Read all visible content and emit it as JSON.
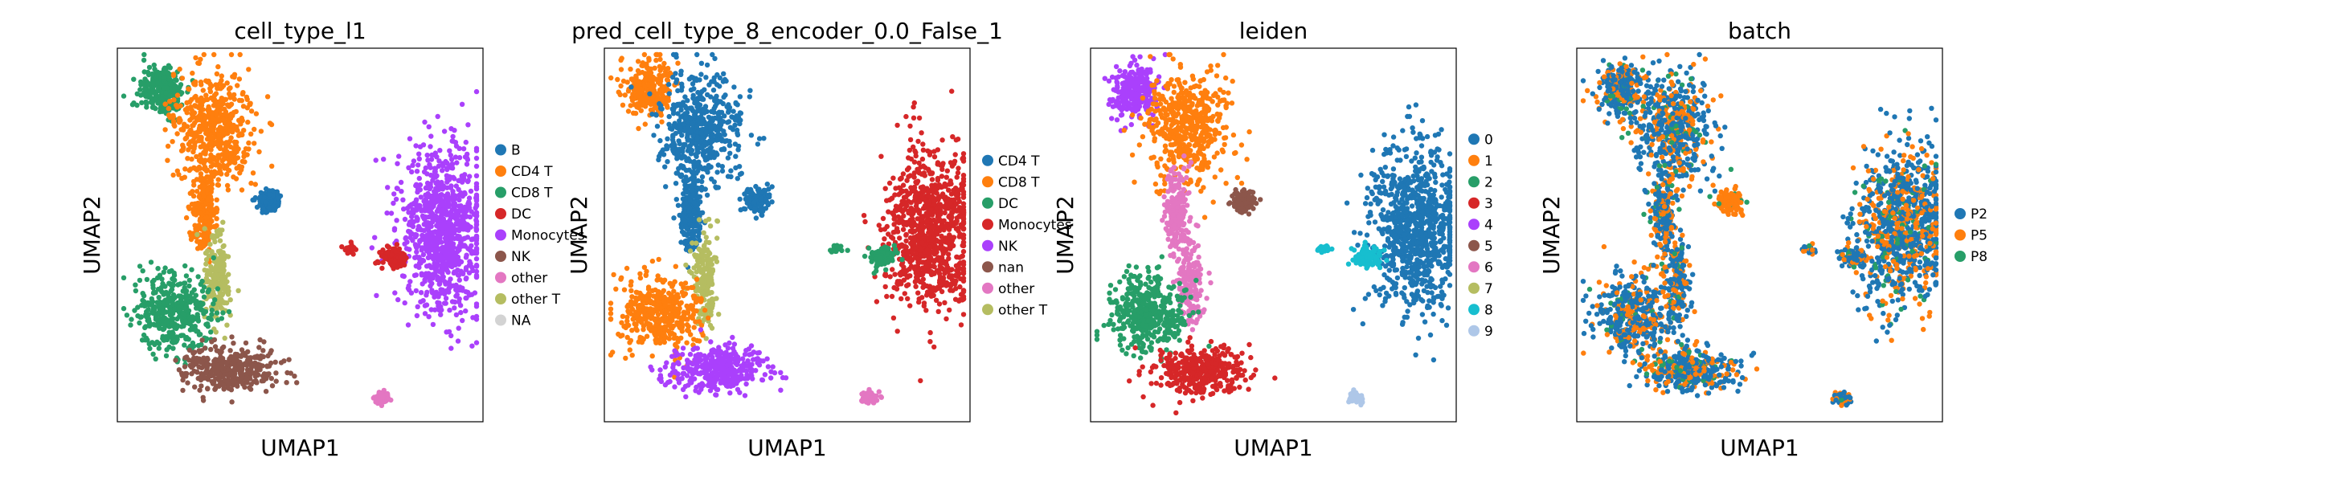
{
  "figure": {
    "panels": [
      {
        "title": "cell_type_l1",
        "xlabel": "UMAP1",
        "ylabel": "UMAP2",
        "legend": [
          {
            "label": "B",
            "color": "#1f77b4"
          },
          {
            "label": "CD4 T",
            "color": "#ff7f0e"
          },
          {
            "label": "CD8 T",
            "color": "#279e68"
          },
          {
            "label": "DC",
            "color": "#d62728"
          },
          {
            "label": "Monocytes",
            "color": "#aa40fc"
          },
          {
            "label": "NK",
            "color": "#8c564b"
          },
          {
            "label": "other",
            "color": "#e377c2"
          },
          {
            "label": "other T",
            "color": "#b5bd61"
          },
          {
            "label": "NA",
            "color": "#d3d3d3"
          }
        ]
      },
      {
        "title": "pred_cell_type_8_encoder_0.0_False_1",
        "xlabel": "UMAP1",
        "ylabel": "UMAP2",
        "legend": [
          {
            "label": "CD4 T",
            "color": "#1f77b4"
          },
          {
            "label": "CD8 T",
            "color": "#ff7f0e"
          },
          {
            "label": "DC",
            "color": "#279e68"
          },
          {
            "label": "Monocytes",
            "color": "#d62728"
          },
          {
            "label": "NK",
            "color": "#aa40fc"
          },
          {
            "label": "nan",
            "color": "#8c564b"
          },
          {
            "label": "other",
            "color": "#e377c2"
          },
          {
            "label": "other T",
            "color": "#b5bd61"
          }
        ]
      },
      {
        "title": "leiden",
        "xlabel": "UMAP1",
        "ylabel": "UMAP2",
        "legend": [
          {
            "label": "0",
            "color": "#1f77b4"
          },
          {
            "label": "1",
            "color": "#ff7f0e"
          },
          {
            "label": "2",
            "color": "#279e68"
          },
          {
            "label": "3",
            "color": "#d62728"
          },
          {
            "label": "4",
            "color": "#aa40fc"
          },
          {
            "label": "5",
            "color": "#8c564b"
          },
          {
            "label": "6",
            "color": "#e377c2"
          },
          {
            "label": "7",
            "color": "#b5bd61"
          },
          {
            "label": "8",
            "color": "#17becf"
          },
          {
            "label": "9",
            "color": "#aec7e8"
          }
        ]
      },
      {
        "title": "batch",
        "xlabel": "UMAP1",
        "ylabel": "UMAP2",
        "legend": [
          {
            "label": "P2",
            "color": "#1f77b4"
          },
          {
            "label": "P5",
            "color": "#ff7f0e"
          },
          {
            "label": "P8",
            "color": "#279e68"
          }
        ]
      }
    ]
  },
  "chart_data": [
    {
      "type": "scatter",
      "title": "cell_type_l1",
      "xlabel": "UMAP1",
      "ylabel": "UMAP2",
      "grid": false,
      "legend_position": "right",
      "series": [
        {
          "name": "B",
          "color": "#1f77b4"
        },
        {
          "name": "CD4 T",
          "color": "#ff7f0e"
        },
        {
          "name": "CD8 T",
          "color": "#279e68"
        },
        {
          "name": "DC",
          "color": "#d62728"
        },
        {
          "name": "Monocytes",
          "color": "#aa40fc"
        },
        {
          "name": "NK",
          "color": "#8c564b"
        },
        {
          "name": "other",
          "color": "#e377c2"
        },
        {
          "name": "other T",
          "color": "#b5bd61"
        },
        {
          "name": "NA",
          "color": "#d3d3d3"
        }
      ]
    },
    {
      "type": "scatter",
      "title": "pred_cell_type_8_encoder_0.0_False_1",
      "xlabel": "UMAP1",
      "ylabel": "UMAP2",
      "grid": false,
      "legend_position": "right",
      "series": [
        {
          "name": "CD4 T",
          "color": "#1f77b4"
        },
        {
          "name": "CD8 T",
          "color": "#ff7f0e"
        },
        {
          "name": "DC",
          "color": "#279e68"
        },
        {
          "name": "Monocytes",
          "color": "#d62728"
        },
        {
          "name": "NK",
          "color": "#aa40fc"
        },
        {
          "name": "nan",
          "color": "#8c564b"
        },
        {
          "name": "other",
          "color": "#e377c2"
        },
        {
          "name": "other T",
          "color": "#b5bd61"
        }
      ]
    },
    {
      "type": "scatter",
      "title": "leiden",
      "xlabel": "UMAP1",
      "ylabel": "UMAP2",
      "grid": false,
      "legend_position": "right",
      "series": [
        {
          "name": "0",
          "color": "#1f77b4"
        },
        {
          "name": "1",
          "color": "#ff7f0e"
        },
        {
          "name": "2",
          "color": "#279e68"
        },
        {
          "name": "3",
          "color": "#d62728"
        },
        {
          "name": "4",
          "color": "#aa40fc"
        },
        {
          "name": "5",
          "color": "#8c564b"
        },
        {
          "name": "6",
          "color": "#e377c2"
        },
        {
          "name": "7",
          "color": "#b5bd61"
        },
        {
          "name": "8",
          "color": "#17becf"
        },
        {
          "name": "9",
          "color": "#aec7e8"
        }
      ]
    },
    {
      "type": "scatter",
      "title": "batch",
      "xlabel": "UMAP1",
      "ylabel": "UMAP2",
      "grid": false,
      "legend_position": "right",
      "series": [
        {
          "name": "P2",
          "color": "#1f77b4"
        },
        {
          "name": "P5",
          "color": "#ff7f0e"
        },
        {
          "name": "P8",
          "color": "#279e68"
        }
      ]
    }
  ]
}
